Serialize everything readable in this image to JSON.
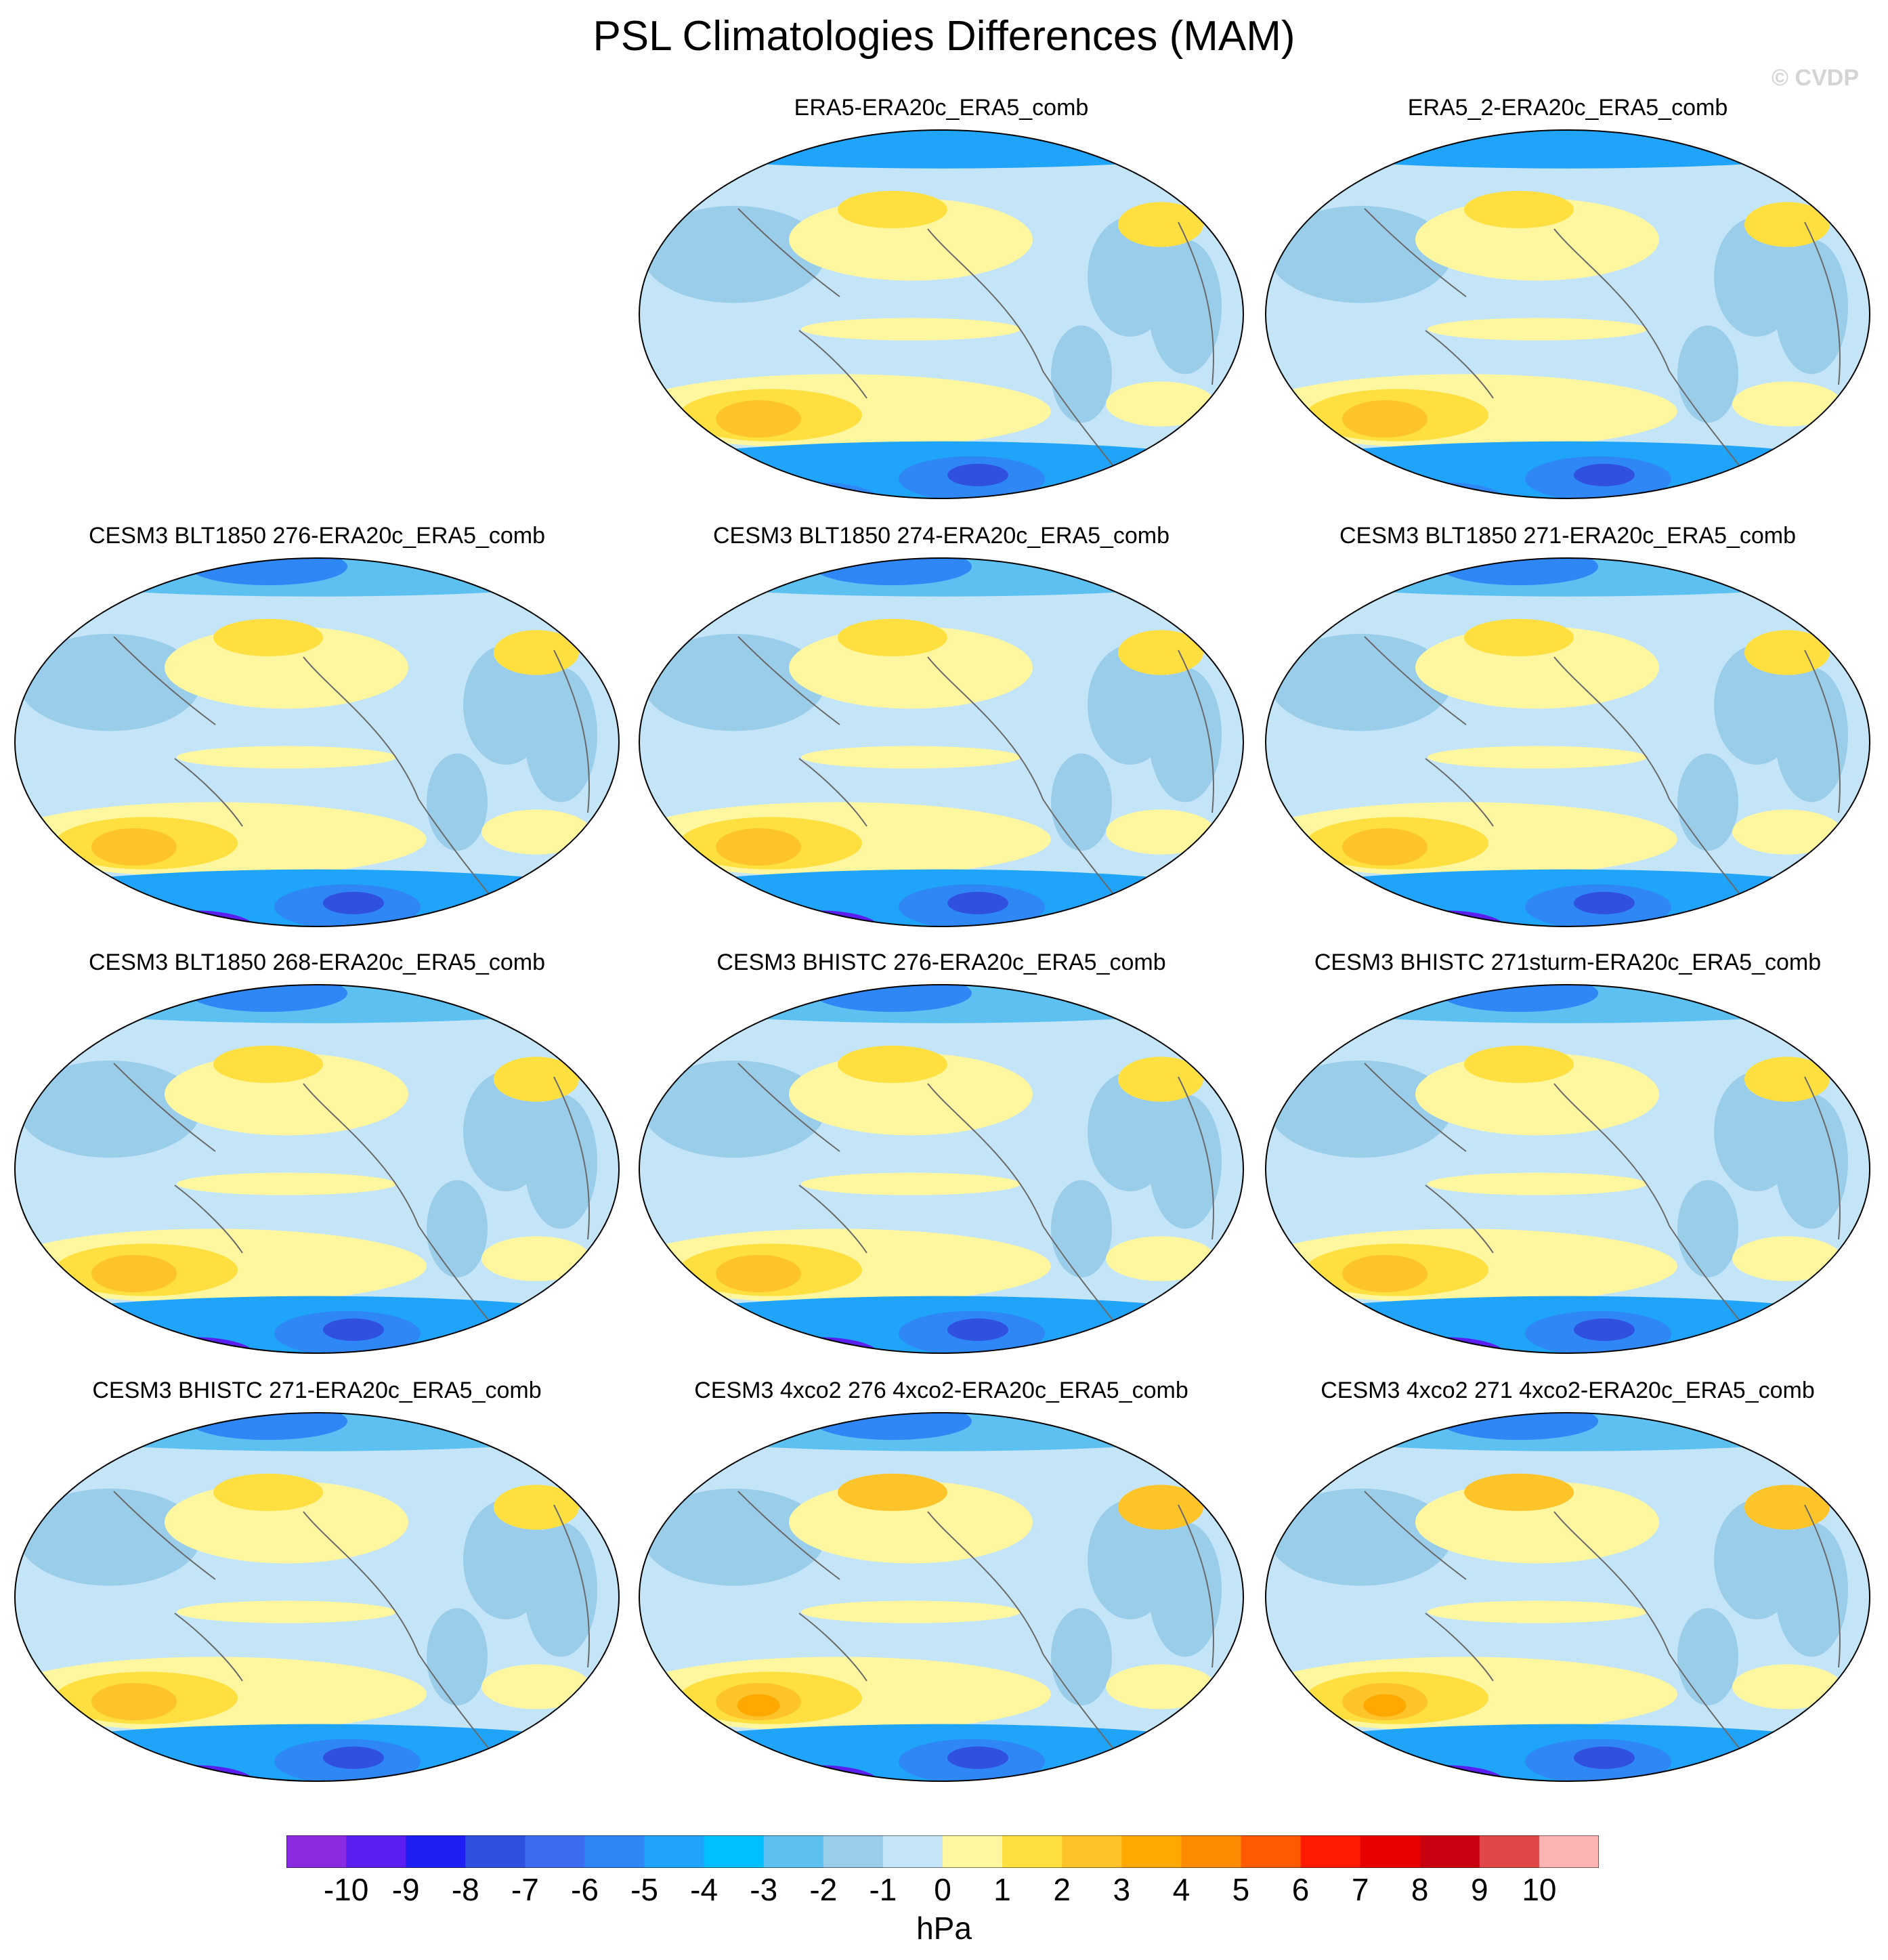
{
  "title": "PSL Climatologies Differences (MAM)",
  "watermark": "© CVDP",
  "panels": [
    {
      "title": "ERA5-ERA20c_ERA5_comb",
      "row": 0,
      "col": 1
    },
    {
      "title": "ERA5_2-ERA20c_ERA5_comb",
      "row": 0,
      "col": 2
    },
    {
      "title": "CESM3 BLT1850 276-ERA20c_ERA5_comb",
      "row": 1,
      "col": 0
    },
    {
      "title": "CESM3 BLT1850 274-ERA20c_ERA5_comb",
      "row": 1,
      "col": 1
    },
    {
      "title": "CESM3 BLT1850 271-ERA20c_ERA5_comb",
      "row": 1,
      "col": 2
    },
    {
      "title": "CESM3 BLT1850 268-ERA20c_ERA5_comb",
      "row": 2,
      "col": 0
    },
    {
      "title": "CESM3 BHISTC 276-ERA20c_ERA5_comb",
      "row": 2,
      "col": 1
    },
    {
      "title": "CESM3 BHISTC 271sturm-ERA20c_ERA5_comb",
      "row": 2,
      "col": 2
    },
    {
      "title": "CESM3 BHISTC 271-ERA20c_ERA5_comb",
      "row": 3,
      "col": 0
    },
    {
      "title": "CESM3 4xco2 276 4xco2-ERA20c_ERA5_comb",
      "row": 3,
      "col": 1
    },
    {
      "title": "CESM3 4xco2 271 4xco2-ERA20c_ERA5_comb",
      "row": 3,
      "col": 2
    }
  ],
  "colorbar": {
    "units": "hPa",
    "tick_labels": [
      "-10",
      "-9",
      "-8",
      "-7",
      "-6",
      "-5",
      "-4",
      "-3",
      "-2",
      "-1",
      "0",
      "1",
      "2",
      "3",
      "4",
      "5",
      "6",
      "7",
      "8",
      "9",
      "10"
    ],
    "colors": [
      "#8a2be2",
      "#5a1ef0",
      "#1e1ef5",
      "#3050e0",
      "#3c6cf0",
      "#2f86f5",
      "#1fa4fa",
      "#00bfff",
      "#5cc1f0",
      "#9acdea",
      "#c4e4f7",
      "#fff7a0",
      "#ffe040",
      "#ffc42a",
      "#ffa800",
      "#ff8c00",
      "#ff5a00",
      "#ff1a00",
      "#e80000",
      "#c80010",
      "#e04848",
      "#ffb4b4"
    ]
  },
  "palette": {
    "ocean": "#c4e4f7",
    "land_neg": "#9acdea",
    "pos1": "#fff7a0",
    "pos2": "#ffe040",
    "pos3": "#ffc42a",
    "pos4": "#ffa800",
    "neg2": "#5cc1f0",
    "neg3": "#1fa4fa",
    "neg5": "#2f86f5",
    "neg7": "#3050e0",
    "neg9": "#5a1ef0",
    "neg10": "#8a2be2",
    "coast": "#6a6a6a"
  }
}
